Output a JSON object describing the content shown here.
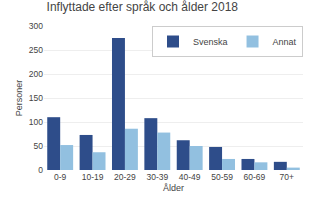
{
  "chart_data": {
    "type": "bar",
    "title": "Inflyttade efter språk och ålder 2018",
    "xlabel": "Ålder",
    "ylabel": "Personer",
    "categories": [
      "0-9",
      "10-19",
      "20-29",
      "30-39",
      "40-49",
      "50-59",
      "60-69",
      "70+"
    ],
    "series": [
      {
        "name": "Svenska",
        "color": "#2E4D8A",
        "values": [
          110,
          73,
          275,
          108,
          62,
          48,
          23,
          17
        ]
      },
      {
        "name": "Annat",
        "color": "#92C0E0",
        "values": [
          52,
          37,
          86,
          78,
          50,
          23,
          16,
          5
        ]
      }
    ],
    "ylim": [
      0,
      300
    ],
    "yticks": [
      0,
      50,
      100,
      150,
      200,
      250,
      300
    ],
    "grid": true,
    "legend": "upper right"
  }
}
